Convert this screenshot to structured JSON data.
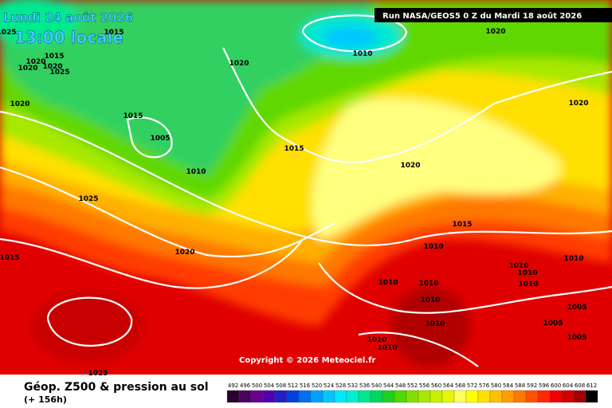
{
  "header": {
    "date": "Lundi 24 août 2026",
    "time": "13:00 locale",
    "run": "Run NASA/GEOS5 0 Z du Mardi 18 août 2026"
  },
  "isobar_labels": [
    1015,
    1020,
    1010,
    1025,
    1015,
    1020,
    1020,
    1020,
    1025,
    1020,
    1020,
    1015,
    1005,
    1020,
    1015,
    1010,
    1020,
    1025,
    1015,
    1010,
    1015,
    1020,
    1010,
    1010,
    1010,
    1010,
    1010,
    1010,
    1010,
    1005,
    1010,
    1005,
    1010,
    1010,
    1005,
    1025
  ],
  "copyright": "Copyright © 2026 Meteociel.fr",
  "legend": {
    "title": "Géop. Z500 & pression au sol",
    "subtitle": "(+ 156h)",
    "values": [
      492,
      496,
      500,
      504,
      508,
      512,
      516,
      520,
      524,
      528,
      532,
      536,
      540,
      544,
      548,
      552,
      556,
      560,
      564,
      568,
      572,
      576,
      580,
      584,
      588,
      592,
      596,
      600,
      604,
      608,
      612
    ],
    "colors": [
      "#2a0030",
      "#4b0060",
      "#6a0090",
      "#5000b0",
      "#2020c8",
      "#0040e0",
      "#0070f0",
      "#00a0ff",
      "#00c8ff",
      "#00e8ff",
      "#00f0d0",
      "#00e890",
      "#00d860",
      "#20d020",
      "#50d800",
      "#80e000",
      "#a8e800",
      "#c8f000",
      "#e8f800",
      "#ffff60",
      "#ffff00",
      "#ffe000",
      "#ffc000",
      "#ff9c00",
      "#ff7800",
      "#ff5000",
      "#ff2800",
      "#f00000",
      "#d00000",
      "#a00000",
      "#000000"
    ]
  }
}
